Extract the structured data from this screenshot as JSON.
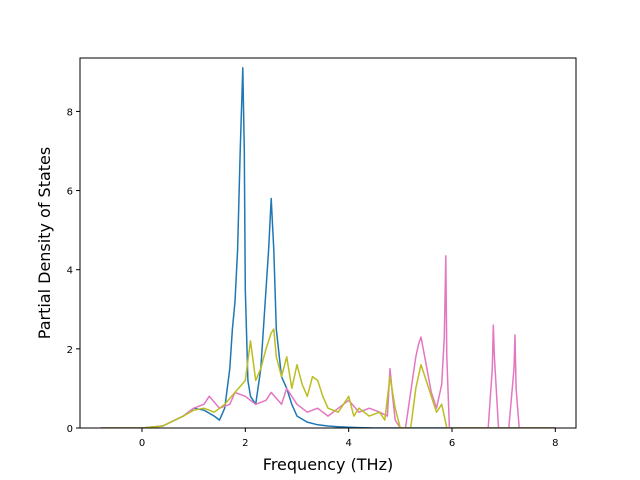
{
  "chart_data": {
    "type": "line",
    "xlabel": "Frequency (THz)",
    "ylabel": "Partial Density of States",
    "xlim": [
      -1.2,
      8.4
    ],
    "ylim": [
      0,
      9.35
    ],
    "xticks": [
      "0",
      "2",
      "4",
      "6",
      "8"
    ],
    "yticks": [
      "0",
      "2",
      "4",
      "6",
      "8"
    ],
    "grid": false,
    "series": [
      {
        "color": "#1f77b4",
        "x": [
          -0.8,
          0.0,
          0.4,
          0.8,
          1.0,
          1.2,
          1.4,
          1.5,
          1.6,
          1.7,
          1.75,
          1.8,
          1.85,
          1.9,
          1.95,
          1.98,
          2.0,
          2.05,
          2.1,
          2.2,
          2.3,
          2.4,
          2.45,
          2.5,
          2.55,
          2.6,
          2.7,
          2.8,
          2.9,
          3.0,
          3.2,
          3.4,
          3.6,
          3.8,
          4.0,
          4.2,
          4.5,
          5.0,
          6.0,
          8.0
        ],
        "y": [
          0,
          0,
          0.05,
          0.3,
          0.5,
          0.45,
          0.3,
          0.2,
          0.5,
          1.5,
          2.5,
          3.2,
          4.5,
          7.0,
          9.1,
          7.0,
          3.5,
          1.2,
          0.8,
          0.6,
          1.5,
          3.5,
          4.5,
          5.8,
          4.5,
          2.5,
          1.3,
          1.0,
          0.6,
          0.3,
          0.15,
          0.08,
          0.05,
          0.03,
          0.02,
          0.01,
          0,
          0,
          0,
          0
        ]
      },
      {
        "color": "#e377c2",
        "x": [
          -0.8,
          0.0,
          0.4,
          0.8,
          1.0,
          1.2,
          1.3,
          1.5,
          1.7,
          1.8,
          2.0,
          2.2,
          2.4,
          2.5,
          2.7,
          2.8,
          3.0,
          3.2,
          3.4,
          3.6,
          3.8,
          4.0,
          4.2,
          4.4,
          4.6,
          4.75,
          4.8,
          4.85,
          4.9,
          5.0,
          5.1,
          5.3,
          5.35,
          5.4,
          5.5,
          5.6,
          5.7,
          5.8,
          5.85,
          5.88,
          5.9,
          5.95,
          6.0,
          6.5,
          6.7,
          6.78,
          6.8,
          6.82,
          6.9,
          7.0,
          7.1,
          7.2,
          7.22,
          7.24,
          7.3,
          8.0
        ],
        "y": [
          0,
          0,
          0.05,
          0.3,
          0.5,
          0.6,
          0.8,
          0.5,
          0.6,
          0.9,
          0.8,
          0.6,
          0.7,
          0.9,
          0.6,
          1.0,
          0.6,
          0.4,
          0.5,
          0.3,
          0.5,
          0.7,
          0.4,
          0.5,
          0.4,
          0.3,
          1.5,
          0.8,
          0.2,
          0,
          0,
          1.8,
          2.1,
          2.3,
          1.6,
          0.9,
          0.5,
          1.1,
          2.3,
          4.35,
          1.8,
          0,
          0,
          0,
          0,
          1.5,
          2.6,
          1.8,
          0,
          0,
          0,
          1.5,
          2.35,
          1.0,
          0,
          0
        ]
      },
      {
        "color": "#bcbd22",
        "x": [
          -0.8,
          0.0,
          0.4,
          0.8,
          1.0,
          1.2,
          1.4,
          1.6,
          1.8,
          2.0,
          2.1,
          2.2,
          2.3,
          2.4,
          2.5,
          2.55,
          2.6,
          2.7,
          2.8,
          2.9,
          3.0,
          3.1,
          3.2,
          3.3,
          3.4,
          3.5,
          3.6,
          3.8,
          4.0,
          4.1,
          4.2,
          4.4,
          4.6,
          4.7,
          4.8,
          4.9,
          5.0,
          5.2,
          5.3,
          5.4,
          5.5,
          5.6,
          5.7,
          5.8,
          5.85,
          5.9,
          6.0,
          8.0
        ],
        "y": [
          0,
          0,
          0.05,
          0.3,
          0.45,
          0.5,
          0.4,
          0.6,
          0.9,
          1.2,
          2.2,
          1.2,
          1.5,
          2.0,
          2.4,
          2.5,
          1.8,
          1.3,
          1.8,
          1.0,
          1.6,
          1.1,
          0.8,
          1.3,
          1.2,
          0.8,
          0.5,
          0.4,
          0.8,
          0.3,
          0.5,
          0.3,
          0.4,
          0.2,
          1.3,
          0.5,
          0,
          0,
          1.0,
          1.6,
          1.2,
          0.8,
          0.4,
          0.6,
          0.3,
          0,
          0,
          0
        ]
      }
    ]
  }
}
